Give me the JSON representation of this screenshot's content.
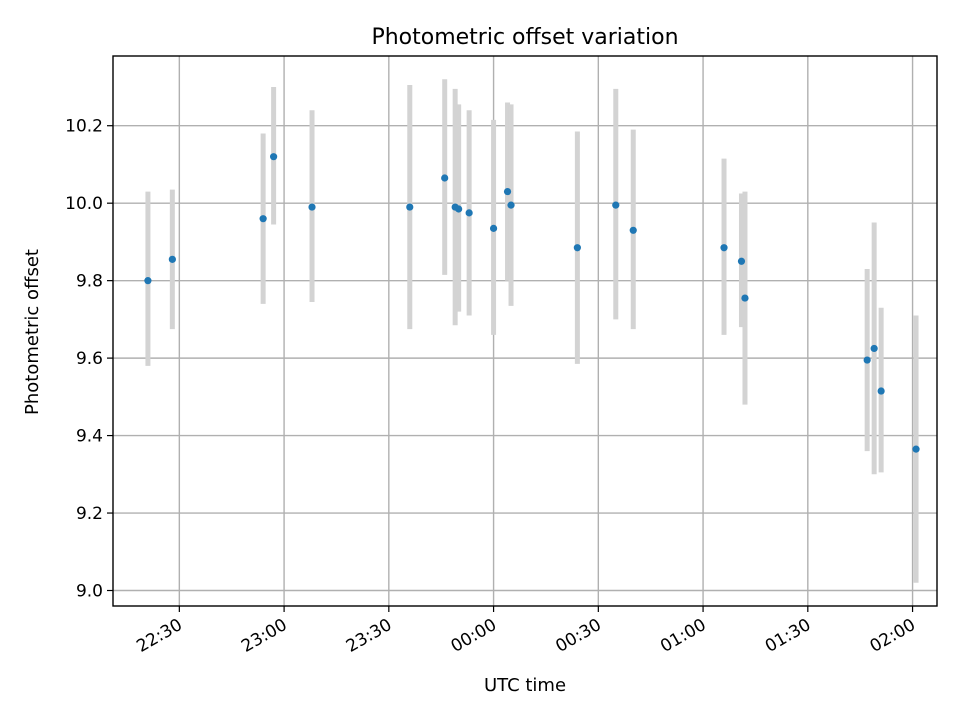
{
  "chart_data": {
    "type": "scatter",
    "title": "Photometric offset variation",
    "xlabel": "UTC time",
    "ylabel": "Photometric offset",
    "x_tick_labels": [
      "22:30",
      "23:00",
      "23:30",
      "00:00",
      "00:30",
      "01:00",
      "01:30",
      "02:00"
    ],
    "y_tick_labels": [
      "9.0",
      "9.2",
      "9.4",
      "9.6",
      "9.8",
      "10.0",
      "10.2"
    ],
    "ylim": [
      8.96,
      10.38
    ],
    "xlim": [
      "22:11",
      "02:07"
    ],
    "grid": true,
    "marker_color": "#1f77b4",
    "errorbar_color": "#d3d3d3",
    "series": [
      {
        "points": [
          {
            "x": "22:21",
            "y": 9.8,
            "yerr_low": 9.58,
            "yerr_high": 10.03
          },
          {
            "x": "22:28",
            "y": 9.855,
            "yerr_low": 9.675,
            "yerr_high": 10.035
          },
          {
            "x": "22:54",
            "y": 9.96,
            "yerr_low": 9.74,
            "yerr_high": 10.18
          },
          {
            "x": "22:57",
            "y": 10.12,
            "yerr_low": 9.945,
            "yerr_high": 10.3
          },
          {
            "x": "23:08",
            "y": 9.99,
            "yerr_low": 9.745,
            "yerr_high": 10.24
          },
          {
            "x": "23:36",
            "y": 9.99,
            "yerr_low": 9.675,
            "yerr_high": 10.305
          },
          {
            "x": "23:46",
            "y": 10.065,
            "yerr_low": 9.815,
            "yerr_high": 10.32
          },
          {
            "x": "23:49",
            "y": 9.99,
            "yerr_low": 9.685,
            "yerr_high": 10.295
          },
          {
            "x": "23:50",
            "y": 9.985,
            "yerr_low": 9.72,
            "yerr_high": 10.255
          },
          {
            "x": "23:53",
            "y": 9.975,
            "yerr_low": 9.71,
            "yerr_high": 10.24
          },
          {
            "x": "00:00",
            "y": 9.935,
            "yerr_low": 9.66,
            "yerr_high": 10.215
          },
          {
            "x": "00:04",
            "y": 10.03,
            "yerr_low": 9.8,
            "yerr_high": 10.26
          },
          {
            "x": "00:05",
            "y": 9.995,
            "yerr_low": 9.735,
            "yerr_high": 10.255
          },
          {
            "x": "00:24",
            "y": 9.885,
            "yerr_low": 9.585,
            "yerr_high": 10.185
          },
          {
            "x": "00:35",
            "y": 9.995,
            "yerr_low": 9.7,
            "yerr_high": 10.295
          },
          {
            "x": "00:40",
            "y": 9.93,
            "yerr_low": 9.675,
            "yerr_high": 10.19
          },
          {
            "x": "01:06",
            "y": 9.885,
            "yerr_low": 9.66,
            "yerr_high": 10.115
          },
          {
            "x": "01:11",
            "y": 9.85,
            "yerr_low": 9.68,
            "yerr_high": 10.025
          },
          {
            "x": "01:12",
            "y": 9.755,
            "yerr_low": 9.48,
            "yerr_high": 10.03
          },
          {
            "x": "01:47",
            "y": 9.595,
            "yerr_low": 9.36,
            "yerr_high": 9.83
          },
          {
            "x": "01:49",
            "y": 9.625,
            "yerr_low": 9.3,
            "yerr_high": 9.95
          },
          {
            "x": "01:51",
            "y": 9.515,
            "yerr_low": 9.305,
            "yerr_high": 9.73
          },
          {
            "x": "02:01",
            "y": 9.365,
            "yerr_low": 9.02,
            "yerr_high": 9.71
          }
        ]
      }
    ]
  }
}
